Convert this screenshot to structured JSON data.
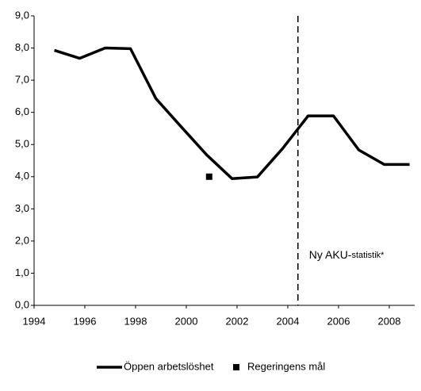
{
  "chart_data": {
    "type": "line",
    "series": [
      {
        "name": "Öppen arbetslöshet",
        "color": "#000000",
        "x": [
          1994.8,
          1995.8,
          1996.8,
          1997.8,
          1998.8,
          1999.8,
          2000.8,
          2001.8,
          2002.8,
          2003.8,
          2004.8,
          2005.8,
          2006.8,
          2007.8,
          2008.8
        ],
        "values": [
          7.93,
          7.68,
          8.0,
          7.98,
          6.43,
          5.55,
          4.68,
          3.94,
          3.99,
          4.88,
          5.89,
          5.89,
          4.83,
          4.38,
          4.38
        ]
      },
      {
        "name": "Regeringens mål",
        "color": "#000000",
        "marker": "square",
        "x": [
          2000.9
        ],
        "values": [
          4.0
        ]
      }
    ],
    "xlim": [
      1994,
      2009
    ],
    "xticks": [
      1994,
      1996,
      1998,
      2000,
      2002,
      2004,
      2006,
      2008
    ],
    "ylim": [
      0,
      9
    ],
    "yticks": [
      {
        "value": 0,
        "label": "0,0"
      },
      {
        "value": 1,
        "label": "1,0"
      },
      {
        "value": 2,
        "label": "2,0"
      },
      {
        "value": 3,
        "label": "3,0"
      },
      {
        "value": 4,
        "label": "4,0"
      },
      {
        "value": 5,
        "label": "5,0"
      },
      {
        "value": 6,
        "label": "6,0"
      },
      {
        "value": 7,
        "label": "7,0"
      },
      {
        "value": 8,
        "label": "8,0"
      },
      {
        "value": 9,
        "label": "9,0"
      }
    ],
    "vline": {
      "x": 2004.4,
      "style": "dashed",
      "annotation": [
        "Ny AKU-",
        "statistik*"
      ]
    },
    "grid": false,
    "legend": "bottom"
  }
}
